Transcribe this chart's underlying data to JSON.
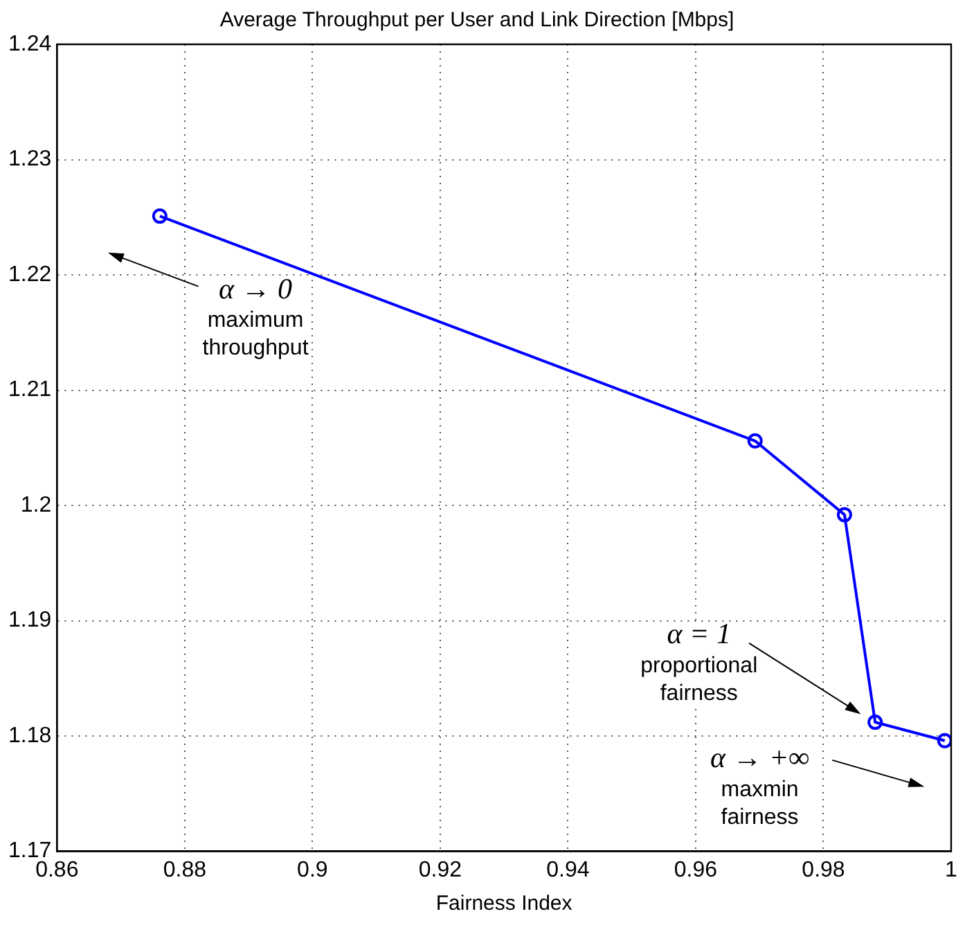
{
  "chart_data": {
    "type": "line",
    "title": "Average Throughput per User and Link Direction [Mbps]",
    "xlabel": "Fairness Index",
    "x": [
      0.8761,
      0.9693,
      0.9833,
      0.9881,
      0.999
    ],
    "series": [
      {
        "color": "#0000ff",
        "values": [
          1.2251,
          1.2056,
          1.1992,
          1.1812,
          1.1796
        ]
      }
    ],
    "xlim": [
      0.86,
      1
    ],
    "xticks": [
      0.86,
      0.88,
      0.9,
      0.92,
      0.94,
      0.96,
      0.98,
      1
    ],
    "ylim": [
      1.17,
      1.24
    ],
    "yticks": [
      1.17,
      1.18,
      1.19,
      1.2,
      1.21,
      1.22,
      1.23,
      1.24
    ],
    "grid": true,
    "marker": "circle",
    "line_style": "solid",
    "legend": false,
    "annotations": [
      "α → 0\nmaximum\nthroughput",
      "α = 1\nproportional\nfairness",
      "α → +∞\nmaxmin\nfairness"
    ]
  }
}
